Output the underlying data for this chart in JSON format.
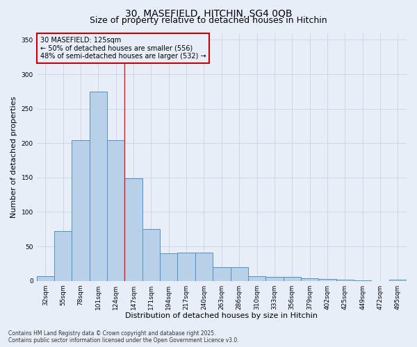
{
  "title_line1": "30, MASEFIELD, HITCHIN, SG4 0QB",
  "title_line2": "Size of property relative to detached houses in Hitchin",
  "xlabel": "Distribution of detached houses by size in Hitchin",
  "ylabel": "Number of detached properties",
  "categories": [
    "32sqm",
    "55sqm",
    "78sqm",
    "101sqm",
    "124sqm",
    "147sqm",
    "171sqm",
    "194sqm",
    "217sqm",
    "240sqm",
    "263sqm",
    "286sqm",
    "310sqm",
    "333sqm",
    "356sqm",
    "379sqm",
    "402sqm",
    "425sqm",
    "449sqm",
    "472sqm",
    "495sqm"
  ],
  "values": [
    7,
    72,
    204,
    275,
    204,
    149,
    75,
    40,
    41,
    41,
    20,
    20,
    7,
    6,
    6,
    4,
    3,
    2,
    1,
    0,
    2
  ],
  "bar_color": "#b8d0e8",
  "bar_edge_color": "#5090c8",
  "vline_color": "#cc2222",
  "grid_color": "#c8d4e4",
  "bg_color": "#e8eef8",
  "annotation_box_edgecolor": "#cc0000",
  "annotation_text_line1": "30 MASEFIELD: 125sqm",
  "annotation_text_line2": "← 50% of detached houses are smaller (556)",
  "annotation_text_line3": "48% of semi-detached houses are larger (532) →",
  "vline_x_idx": 4.5,
  "ylim": [
    0,
    360
  ],
  "yticks": [
    0,
    50,
    100,
    150,
    200,
    250,
    300,
    350
  ],
  "footer_line1": "Contains HM Land Registry data © Crown copyright and database right 2025.",
  "footer_line2": "Contains public sector information licensed under the Open Government Licence v3.0.",
  "title_fontsize": 10,
  "subtitle_fontsize": 9,
  "axis_label_fontsize": 8,
  "tick_fontsize": 6.5,
  "annotation_fontsize": 7,
  "footer_fontsize": 5.5
}
